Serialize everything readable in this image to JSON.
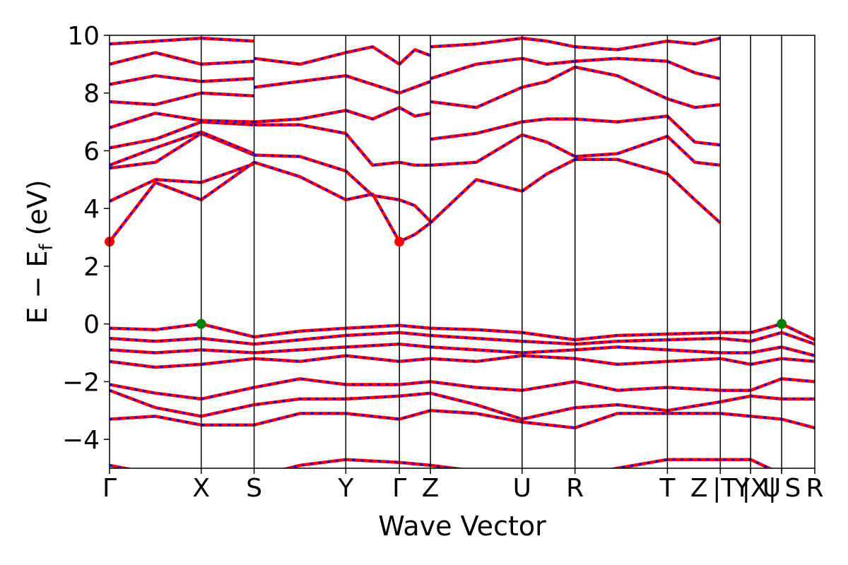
{
  "chart_data": {
    "type": "line",
    "title": "",
    "xlabel": "Wave Vector",
    "ylabel_main": "E − E",
    "ylabel_sub": "f",
    "ylabel_unit": " (eV)",
    "ylim": [
      -5,
      10
    ],
    "yticks": [
      -4,
      -2,
      0,
      2,
      4,
      6,
      8,
      10
    ],
    "ytick_labels": [
      "−4",
      "−2",
      "0",
      "2",
      "4",
      "6",
      "8",
      "10"
    ],
    "grid": false,
    "legend": "none",
    "kpath": [
      {
        "label": "Γ",
        "x": 0.0
      },
      {
        "label": "X",
        "x": 0.13
      },
      {
        "label": "S",
        "x": 0.205
      },
      {
        "label": "Y",
        "x": 0.335
      },
      {
        "label": "Γ",
        "x": 0.411
      },
      {
        "label": "Z",
        "x": 0.455
      },
      {
        "label": "U",
        "x": 0.585
      },
      {
        "label": "R",
        "x": 0.66
      },
      {
        "label": "T",
        "x": 0.791
      },
      {
        "label": "Z",
        "x": 0.866
      },
      {
        "label": "|T",
        "x": 0.866
      },
      {
        "label": "Y",
        "x": 0.909
      },
      {
        "label": "|X",
        "x": 0.909
      },
      {
        "label": "U",
        "x": 0.953
      },
      {
        "label": "| S",
        "x": 0.953
      },
      {
        "label": "R",
        "x": 1.0
      }
    ],
    "kpath_lines": [
      0.13,
      0.205,
      0.335,
      0.411,
      0.455,
      0.585,
      0.66,
      0.791,
      0.866,
      0.909,
      0.953
    ],
    "xlim": [
      0,
      1
    ],
    "colors": {
      "band_primary": "#ff0000",
      "band_secondary": "#0000ff",
      "cbm": "#ff0000",
      "vbm": "#008000"
    },
    "markers": [
      {
        "name": "CBM",
        "x": 0.0,
        "y": 2.85,
        "color": "#ff0000"
      },
      {
        "name": "CBM",
        "x": 0.411,
        "y": 2.85,
        "color": "#ff0000"
      },
      {
        "name": "VBM",
        "x": 0.13,
        "y": 0.0,
        "color": "#008000"
      },
      {
        "name": "VBM",
        "x": 0.953,
        "y": 0.0,
        "color": "#008000"
      }
    ],
    "series": [
      {
        "x": [
          0.0,
          0.065,
          0.13,
          0.205
        ],
        "y": [
          2.85,
          4.9,
          4.3,
          5.6
        ]
      },
      {
        "x": [
          0.0,
          0.065,
          0.13,
          0.205
        ],
        "y": [
          4.25,
          5.0,
          4.9,
          5.55
        ]
      },
      {
        "x": [
          0.0,
          0.065,
          0.13,
          0.205
        ],
        "y": [
          5.4,
          5.6,
          6.6,
          5.85
        ]
      },
      {
        "x": [
          0.0,
          0.065,
          0.13,
          0.205
        ],
        "y": [
          5.5,
          6.1,
          6.65,
          5.9
        ]
      },
      {
        "x": [
          0.0,
          0.065,
          0.13,
          0.205
        ],
        "y": [
          6.1,
          6.4,
          7.0,
          6.9
        ]
      },
      {
        "x": [
          0.0,
          0.065,
          0.13,
          0.205
        ],
        "y": [
          6.8,
          7.3,
          7.05,
          7.0
        ]
      },
      {
        "x": [
          0.0,
          0.065,
          0.13,
          0.205
        ],
        "y": [
          7.7,
          7.6,
          8.0,
          7.9
        ]
      },
      {
        "x": [
          0.0,
          0.065,
          0.13,
          0.205
        ],
        "y": [
          8.3,
          8.6,
          8.4,
          8.5
        ]
      },
      {
        "x": [
          0.0,
          0.065,
          0.13,
          0.205
        ],
        "y": [
          9.0,
          9.4,
          9.0,
          9.1
        ]
      },
      {
        "x": [
          0.0,
          0.065,
          0.13,
          0.205
        ],
        "y": [
          9.7,
          9.8,
          9.9,
          9.8
        ]
      },
      {
        "x": [
          0.205,
          0.27,
          0.335,
          0.373,
          0.411,
          0.433,
          0.455
        ],
        "y": [
          5.6,
          5.1,
          4.3,
          4.5,
          2.85,
          3.1,
          3.5
        ]
      },
      {
        "x": [
          0.205,
          0.27,
          0.335,
          0.373,
          0.411,
          0.433,
          0.455
        ],
        "y": [
          5.85,
          5.8,
          5.3,
          4.45,
          4.3,
          4.1,
          3.55
        ]
      },
      {
        "x": [
          0.205,
          0.27,
          0.335,
          0.373,
          0.411,
          0.433,
          0.455
        ],
        "y": [
          6.9,
          6.9,
          6.6,
          5.5,
          5.6,
          5.5,
          5.5
        ]
      },
      {
        "x": [
          0.205,
          0.27,
          0.335,
          0.373,
          0.411,
          0.433,
          0.455
        ],
        "y": [
          7.0,
          7.1,
          7.4,
          7.1,
          7.5,
          7.2,
          7.3
        ]
      },
      {
        "x": [
          0.205,
          0.27,
          0.335,
          0.373,
          0.411,
          0.433,
          0.455
        ],
        "y": [
          8.2,
          8.4,
          8.6,
          8.3,
          8.0,
          8.2,
          8.4
        ]
      },
      {
        "x": [
          0.205,
          0.27,
          0.335,
          0.373,
          0.411,
          0.433,
          0.455
        ],
        "y": [
          9.2,
          9.0,
          9.4,
          9.6,
          9.0,
          9.5,
          9.3
        ]
      },
      {
        "x": [
          0.455,
          0.52,
          0.585,
          0.62,
          0.66
        ],
        "y": [
          3.5,
          5.0,
          4.6,
          5.2,
          5.7
        ]
      },
      {
        "x": [
          0.455,
          0.52,
          0.585,
          0.62,
          0.66
        ],
        "y": [
          5.5,
          5.6,
          6.55,
          6.3,
          5.8
        ]
      },
      {
        "x": [
          0.455,
          0.52,
          0.585,
          0.62,
          0.66
        ],
        "y": [
          6.4,
          6.6,
          7.0,
          7.1,
          7.1
        ]
      },
      {
        "x": [
          0.455,
          0.52,
          0.585,
          0.62,
          0.66
        ],
        "y": [
          7.7,
          7.5,
          8.2,
          8.4,
          8.9
        ]
      },
      {
        "x": [
          0.455,
          0.52,
          0.585,
          0.62,
          0.66
        ],
        "y": [
          8.5,
          9.0,
          9.2,
          9.0,
          9.1
        ]
      },
      {
        "x": [
          0.455,
          0.52,
          0.585,
          0.62,
          0.66
        ],
        "y": [
          9.6,
          9.7,
          9.9,
          9.8,
          9.6
        ]
      },
      {
        "x": [
          0.66,
          0.72,
          0.791,
          0.83,
          0.866
        ],
        "y": [
          5.7,
          5.7,
          5.2,
          4.3,
          3.5
        ]
      },
      {
        "x": [
          0.66,
          0.72,
          0.791,
          0.83,
          0.866
        ],
        "y": [
          5.8,
          5.9,
          6.5,
          5.6,
          5.5
        ]
      },
      {
        "x": [
          0.66,
          0.72,
          0.791,
          0.83,
          0.866
        ],
        "y": [
          7.1,
          7.0,
          7.2,
          6.3,
          6.2
        ]
      },
      {
        "x": [
          0.66,
          0.72,
          0.791,
          0.83,
          0.866
        ],
        "y": [
          8.9,
          8.6,
          7.8,
          7.5,
          7.6
        ]
      },
      {
        "x": [
          0.66,
          0.72,
          0.791,
          0.83,
          0.866
        ],
        "y": [
          9.1,
          9.2,
          9.1,
          8.7,
          8.5
        ]
      },
      {
        "x": [
          0.66,
          0.72,
          0.791,
          0.83,
          0.866
        ],
        "y": [
          9.6,
          9.5,
          9.8,
          9.7,
          9.9
        ]
      },
      {
        "x": [
          0.0,
          0.065,
          0.13,
          0.205,
          0.27,
          0.335,
          0.411,
          0.455,
          0.52,
          0.585,
          0.66,
          0.72,
          0.791,
          0.866,
          0.909,
          0.953,
          1.0
        ],
        "y": [
          -0.15,
          -0.2,
          0.0,
          -0.45,
          -0.25,
          -0.15,
          -0.05,
          -0.15,
          -0.2,
          -0.3,
          -0.55,
          -0.4,
          -0.35,
          -0.3,
          -0.3,
          0.0,
          -0.55
        ]
      },
      {
        "x": [
          0.0,
          0.065,
          0.13,
          0.205,
          0.27,
          0.335,
          0.411,
          0.455,
          0.52,
          0.585,
          0.66,
          0.72,
          0.791,
          0.866,
          0.909,
          0.953,
          1.0
        ],
        "y": [
          -0.5,
          -0.6,
          -0.5,
          -0.7,
          -0.55,
          -0.4,
          -0.3,
          -0.4,
          -0.5,
          -0.6,
          -0.7,
          -0.6,
          -0.55,
          -0.5,
          -0.6,
          -0.3,
          -0.7
        ]
      },
      {
        "x": [
          0.0,
          0.065,
          0.13,
          0.205,
          0.27,
          0.335,
          0.411,
          0.455,
          0.52,
          0.585,
          0.66,
          0.72,
          0.791,
          0.866,
          0.909,
          0.953,
          1.0
        ],
        "y": [
          -0.9,
          -1.0,
          -0.9,
          -1.0,
          -0.9,
          -0.8,
          -0.7,
          -0.8,
          -0.9,
          -1.0,
          -0.9,
          -0.8,
          -0.9,
          -1.0,
          -1.0,
          -0.8,
          -1.1
        ]
      },
      {
        "x": [
          0.0,
          0.065,
          0.13,
          0.205,
          0.27,
          0.335,
          0.411,
          0.455,
          0.52,
          0.585,
          0.66,
          0.72,
          0.791,
          0.866,
          0.909,
          0.953,
          1.0
        ],
        "y": [
          -1.3,
          -1.5,
          -1.4,
          -1.2,
          -1.3,
          -1.1,
          -1.3,
          -1.2,
          -1.3,
          -1.1,
          -1.2,
          -1.4,
          -1.3,
          -1.2,
          -1.4,
          -1.2,
          -1.3
        ]
      },
      {
        "x": [
          0.0,
          0.065,
          0.13,
          0.205,
          0.27,
          0.335,
          0.411,
          0.455,
          0.52,
          0.585,
          0.66,
          0.72,
          0.791,
          0.866,
          0.909,
          0.953,
          1.0
        ],
        "y": [
          -2.1,
          -2.4,
          -2.6,
          -2.2,
          -1.9,
          -2.1,
          -2.1,
          -2.0,
          -2.2,
          -2.3,
          -2.0,
          -2.3,
          -2.2,
          -2.3,
          -2.3,
          -1.9,
          -2.0
        ]
      },
      {
        "x": [
          0.0,
          0.065,
          0.13,
          0.205,
          0.27,
          0.335,
          0.411,
          0.455,
          0.52,
          0.585,
          0.66,
          0.72,
          0.791,
          0.866,
          0.909,
          0.953,
          1.0
        ],
        "y": [
          -2.3,
          -2.9,
          -3.2,
          -2.8,
          -2.6,
          -2.6,
          -2.5,
          -2.4,
          -2.8,
          -3.3,
          -2.9,
          -2.8,
          -3.0,
          -2.7,
          -2.5,
          -2.6,
          -2.6
        ]
      },
      {
        "x": [
          0.0,
          0.065,
          0.13,
          0.205,
          0.27,
          0.335,
          0.411,
          0.455,
          0.52,
          0.585,
          0.66,
          0.72,
          0.791,
          0.866,
          0.909,
          0.953,
          1.0
        ],
        "y": [
          -3.3,
          -3.2,
          -3.5,
          -3.5,
          -3.1,
          -3.1,
          -3.3,
          -3.0,
          -3.1,
          -3.4,
          -3.6,
          -3.1,
          -3.1,
          -3.1,
          -3.2,
          -3.3,
          -3.6
        ]
      },
      {
        "x": [
          0.0,
          0.065,
          0.13,
          0.205,
          0.27,
          0.335,
          0.411,
          0.455,
          0.52,
          0.585,
          0.66,
          0.72,
          0.791,
          0.866,
          0.909,
          0.953,
          1.0
        ],
        "y": [
          -4.9,
          -5.2,
          -5.4,
          -5.3,
          -4.9,
          -4.7,
          -4.8,
          -4.9,
          -5.1,
          -5.2,
          -5.3,
          -5.0,
          -4.7,
          -4.7,
          -4.7,
          -5.2,
          -5.3
        ]
      }
    ]
  }
}
